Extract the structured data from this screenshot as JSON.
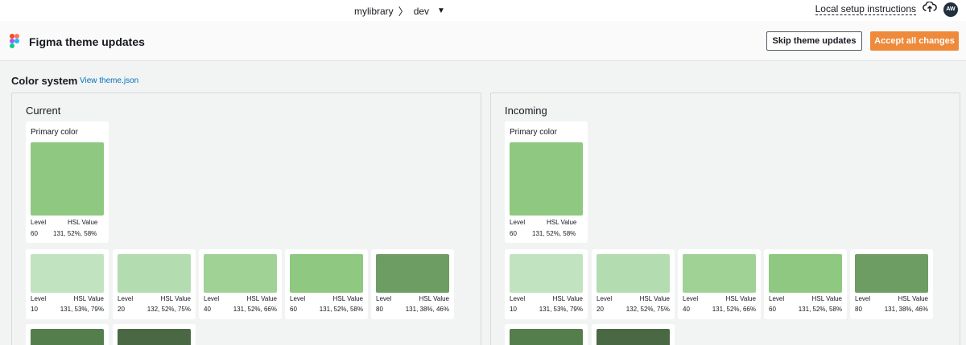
{
  "topbar": {
    "repo": "mylibrary",
    "branch": "dev",
    "setup_link": "Local setup instructions",
    "avatar_initials": "AW"
  },
  "header": {
    "title": "Figma theme updates",
    "skip_label": "Skip theme updates",
    "accept_label": "Accept all changes"
  },
  "section": {
    "title": "Color system",
    "link": "View theme.json"
  },
  "labels": {
    "level": "Level",
    "hsl": "HSL Value",
    "primary": "Primary color"
  },
  "panels": {
    "current": {
      "title": "Current",
      "primary": {
        "level": "60",
        "hsl": "131, 52%, 58%",
        "color": "#8fc880"
      },
      "shades": [
        {
          "level": "10",
          "hsl": "131, 53%, 79%",
          "color": "#c2e3c0"
        },
        {
          "level": "20",
          "hsl": "132, 52%, 75%",
          "color": "#b4dcb1"
        },
        {
          "level": "40",
          "hsl": "131, 52%, 66%",
          "color": "#a0d296"
        },
        {
          "level": "60",
          "hsl": "131, 52%, 58%",
          "color": "#8fc880"
        },
        {
          "level": "80",
          "hsl": "131, 38%, 46%",
          "color": "#6d9d63"
        }
      ],
      "tail_colors": [
        "#557e4d",
        "#4a6843"
      ]
    },
    "incoming": {
      "title": "Incoming",
      "primary": {
        "level": "60",
        "hsl": "131, 52%, 58%",
        "color": "#8fc880"
      },
      "shades": [
        {
          "level": "10",
          "hsl": "131, 53%, 79%",
          "color": "#c2e3c0"
        },
        {
          "level": "20",
          "hsl": "132, 52%, 75%",
          "color": "#b4dcb1"
        },
        {
          "level": "40",
          "hsl": "131, 52%, 66%",
          "color": "#a0d296"
        },
        {
          "level": "60",
          "hsl": "131, 52%, 58%",
          "color": "#8fc880"
        },
        {
          "level": "80",
          "hsl": "131, 38%, 46%",
          "color": "#6d9d63"
        }
      ],
      "tail_colors": [
        "#557e4d",
        "#4a6843"
      ]
    }
  },
  "colors": {
    "accent": "#ec7211",
    "link": "#0073bb"
  }
}
